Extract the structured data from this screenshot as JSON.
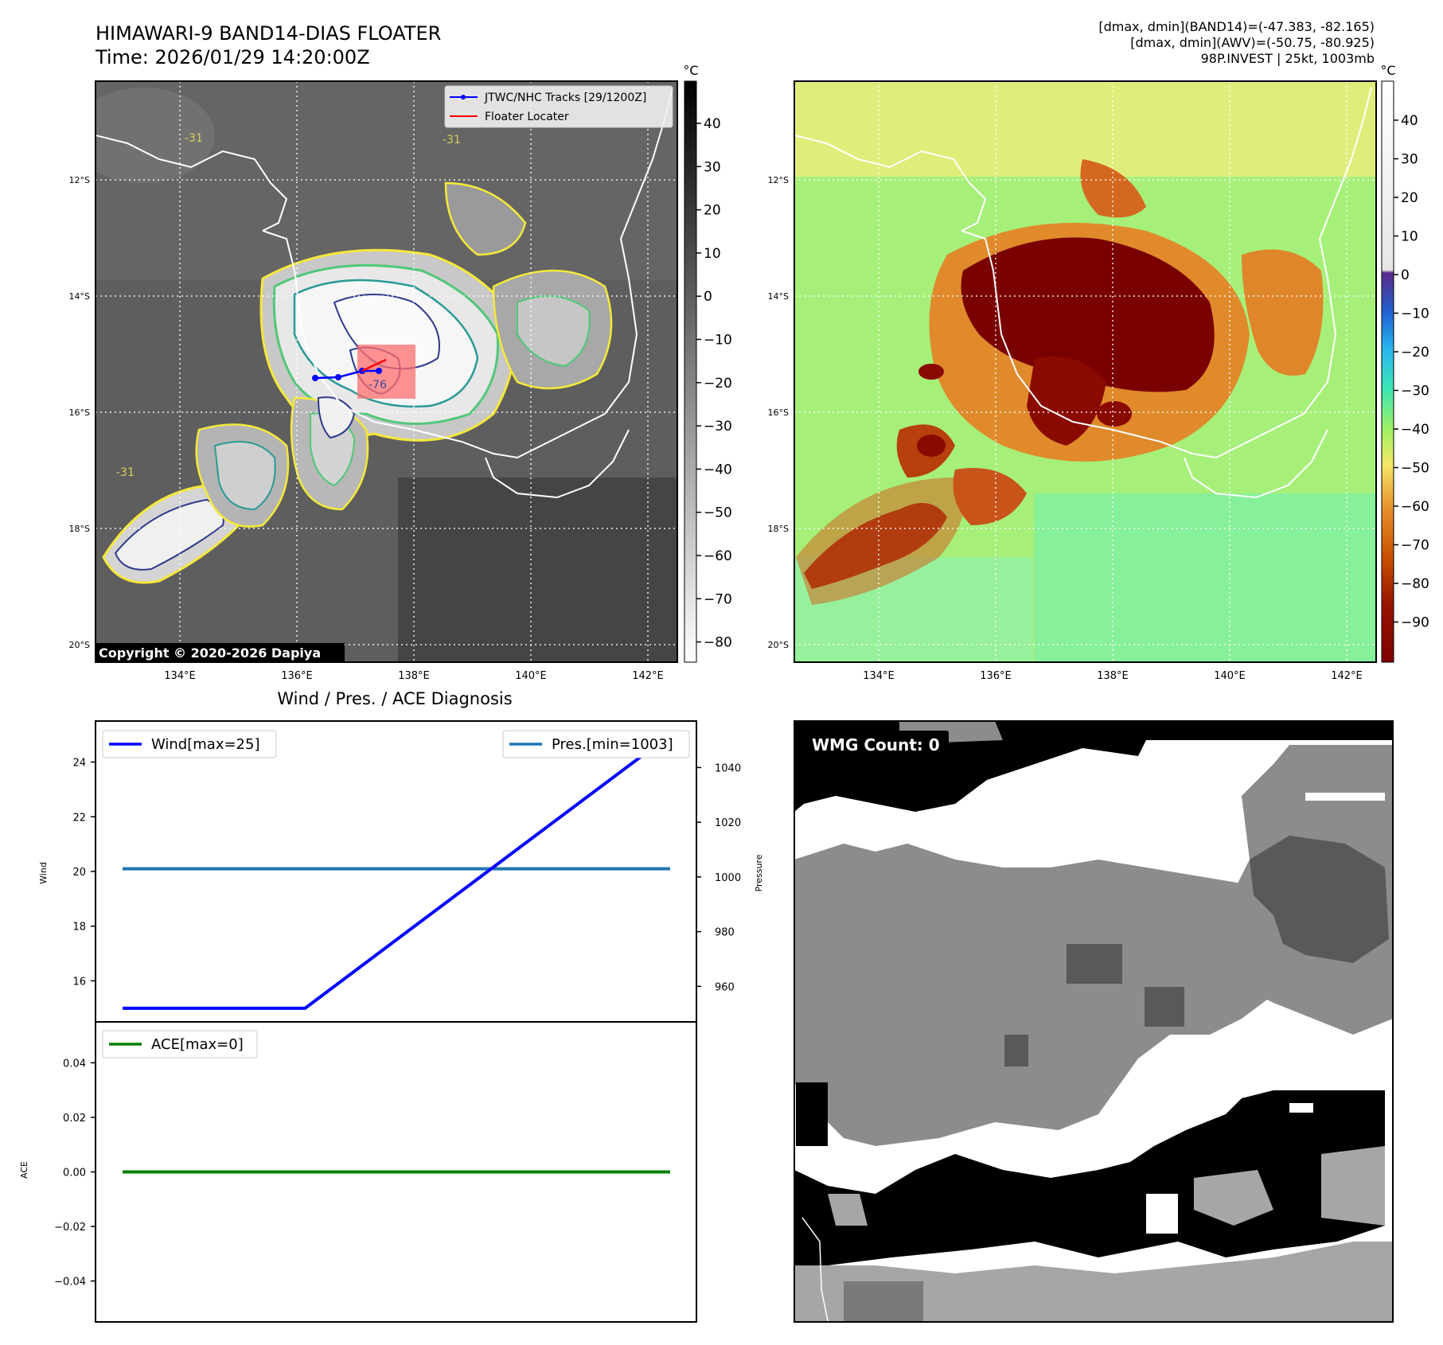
{
  "header": {
    "title_line1": "HIMAWARI-9 BAND14-DIAS FLOATER",
    "title_line2": "Time: 2026/01/29 14:20:00Z",
    "stats_line1": "[dmax, dmin](BAND14)=(-47.383, -82.165)",
    "stats_line2": "[dmax, dmin](AWV)=(-50.75, -80.925)",
    "stats_line3": "98P.INVEST | 25kt, 1003mb"
  },
  "colors": {
    "wind": "#0000ff",
    "pressure": "#1f77b4",
    "ace": "#008000",
    "track": "#0000ff",
    "locator": "#ff0000"
  },
  "maps": {
    "lon_ticks": [
      "134°E",
      "136°E",
      "138°E",
      "140°E",
      "142°E"
    ],
    "lat_ticks": [
      "12°S",
      "14°S",
      "16°S",
      "18°S",
      "20°S"
    ],
    "legend_track": "JTWC/NHC Tracks [29/1200Z]",
    "legend_locator": "Floater Locater",
    "copyright": "Copyright © 2020-2026 Dapiya",
    "contour_labels": [
      "-31",
      "-31",
      "-31",
      "-76"
    ],
    "colorbar_left": {
      "unit": "°C",
      "ticks": [
        "40",
        "30",
        "20",
        "10",
        "0",
        "−10",
        "−20",
        "−30",
        "−40",
        "−50",
        "−60",
        "−70",
        "−80"
      ]
    },
    "colorbar_right": {
      "unit": "°C",
      "ticks": [
        "40",
        "30",
        "20",
        "10",
        "0",
        "−10",
        "−20",
        "−30",
        "−40",
        "−50",
        "−60",
        "−70",
        "−80",
        "−90"
      ]
    }
  },
  "chart_data": [
    {
      "type": "line",
      "title": "Wind / Pres. / ACE Diagnosis",
      "ylabel": "Wind",
      "y2label": "Pressure",
      "ylim": [
        14.5,
        25.5
      ],
      "y2lim": [
        947,
        1057
      ],
      "yticks": [
        "24",
        "22",
        "20",
        "18",
        "16"
      ],
      "y2ticks": [
        "1040",
        "1020",
        "1000",
        "980",
        "960"
      ],
      "x": [
        0,
        1,
        2,
        3
      ],
      "series": [
        {
          "name": "Wind[max=25]",
          "axis": "left",
          "values": [
            15,
            15,
            20,
            25
          ]
        },
        {
          "name": "Pres.[min=1003]",
          "axis": "right",
          "values": [
            1003,
            1003,
            1003,
            1003
          ]
        }
      ]
    },
    {
      "type": "line",
      "ylabel": "ACE",
      "ylim": [
        -0.055,
        0.055
      ],
      "yticks": [
        "0.04",
        "0.02",
        "0.00",
        "−0.02",
        "−0.04"
      ],
      "x": [
        0,
        1,
        2,
        3
      ],
      "series": [
        {
          "name": "ACE[max=0]",
          "values": [
            0,
            0,
            0,
            0
          ]
        }
      ]
    }
  ],
  "wmg": {
    "label": "WMG Count: 0"
  }
}
